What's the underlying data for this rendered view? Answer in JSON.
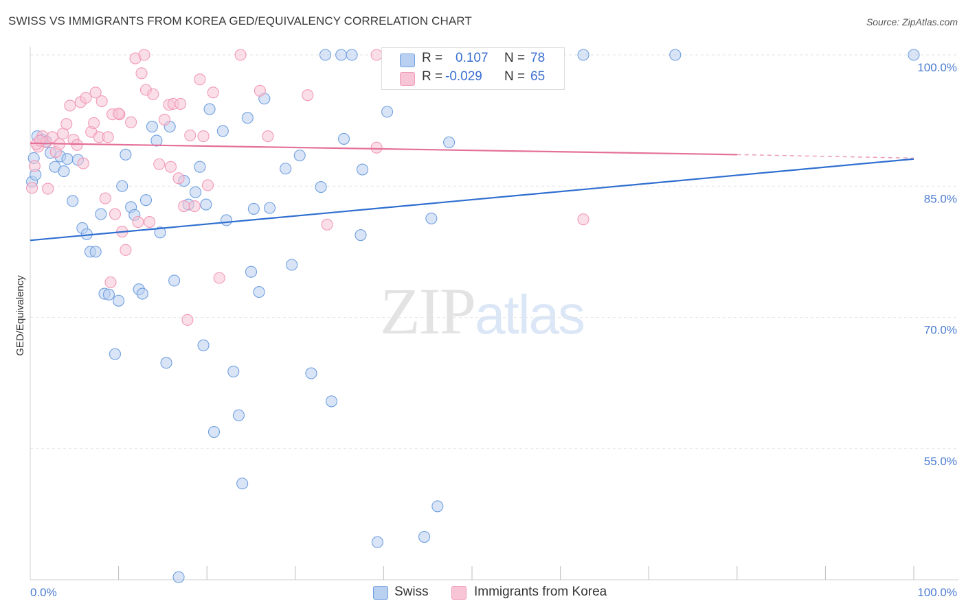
{
  "title": "SWISS VS IMMIGRANTS FROM KOREA GED/EQUIVALENCY CORRELATION CHART",
  "source": "Source: ZipAtlas.com",
  "watermark": {
    "zip": "ZIP",
    "atlas": "atlas"
  },
  "legend": {
    "rows": [
      {
        "r_label": "R =",
        "r_value": "0.107",
        "n_label": "N =",
        "n_value": "78"
      },
      {
        "r_label": "R =",
        "r_value": "-0.029",
        "n_label": "N =",
        "n_value": "65"
      }
    ]
  },
  "bottom_legend": [
    "Swiss",
    "Immigrants from Korea"
  ],
  "chart_data": {
    "type": "scatter",
    "ylabel": "GED/Equivalency",
    "xlim": [
      0,
      100
    ],
    "ylim": [
      40,
      100
    ],
    "y_ticks": [
      {
        "value": 100,
        "label": "100.0%"
      },
      {
        "value": 85,
        "label": "85.0%"
      },
      {
        "value": 70,
        "label": "70.0%"
      },
      {
        "value": 55,
        "label": "55.0%"
      }
    ],
    "x_tick_labels": {
      "left": "0.0%",
      "right": "100.0%"
    },
    "grid": true,
    "series": [
      {
        "name": "Swiss",
        "color": "#6f9fe0",
        "fill": "#b9d0f1",
        "trend": {
          "x": [
            0,
            100
          ],
          "y": [
            78.8,
            88.1
          ],
          "color": "#2f6fd0"
        },
        "points": [
          [
            0.8,
            90.7
          ],
          [
            1.4,
            90.3
          ],
          [
            1.8,
            90.1
          ],
          [
            2.3,
            88.8
          ],
          [
            2.8,
            87.2
          ],
          [
            3.4,
            88.4
          ],
          [
            3.8,
            86.7
          ],
          [
            4.2,
            88.1
          ],
          [
            4.8,
            83.3
          ],
          [
            5.4,
            88.0
          ],
          [
            5.9,
            80.2
          ],
          [
            6.4,
            79.5
          ],
          [
            6.8,
            77.5
          ],
          [
            7.4,
            77.5
          ],
          [
            8.0,
            81.8
          ],
          [
            8.4,
            72.7
          ],
          [
            8.9,
            72.6
          ],
          [
            9.6,
            65.8
          ],
          [
            10.0,
            71.9
          ],
          [
            10.4,
            85.0
          ],
          [
            10.8,
            88.6
          ],
          [
            11.4,
            82.6
          ],
          [
            11.8,
            81.7
          ],
          [
            12.3,
            73.2
          ],
          [
            12.7,
            72.7
          ],
          [
            13.1,
            83.4
          ],
          [
            13.8,
            91.8
          ],
          [
            14.3,
            90.2
          ],
          [
            14.7,
            79.7
          ],
          [
            15.4,
            64.8
          ],
          [
            15.8,
            91.8
          ],
          [
            16.3,
            74.2
          ],
          [
            16.8,
            40.3
          ],
          [
            17.4,
            85.6
          ],
          [
            17.9,
            82.9
          ],
          [
            18.7,
            84.3
          ],
          [
            19.2,
            87.2
          ],
          [
            19.6,
            66.8
          ],
          [
            19.9,
            82.9
          ],
          [
            20.3,
            93.8
          ],
          [
            20.8,
            56.9
          ],
          [
            21.8,
            91.3
          ],
          [
            22.2,
            81.1
          ],
          [
            23.0,
            63.8
          ],
          [
            23.6,
            58.8
          ],
          [
            24.0,
            51.0
          ],
          [
            24.6,
            92.8
          ],
          [
            25.0,
            75.2
          ],
          [
            25.3,
            82.4
          ],
          [
            25.9,
            72.9
          ],
          [
            26.5,
            95.0
          ],
          [
            27.1,
            82.5
          ],
          [
            28.9,
            87.0
          ],
          [
            29.6,
            76.0
          ],
          [
            30.5,
            88.5
          ],
          [
            31.8,
            63.6
          ],
          [
            32.9,
            84.9
          ],
          [
            33.4,
            100.0
          ],
          [
            34.1,
            60.4
          ],
          [
            35.2,
            100.0
          ],
          [
            35.5,
            90.4
          ],
          [
            36.4,
            100.0
          ],
          [
            37.4,
            79.4
          ],
          [
            37.6,
            86.9
          ],
          [
            39.3,
            44.3
          ],
          [
            40.4,
            93.5
          ],
          [
            44.6,
            44.9
          ],
          [
            45.1,
            100.0
          ],
          [
            45.4,
            81.3
          ],
          [
            46.1,
            48.4
          ],
          [
            47.4,
            90.0
          ],
          [
            56.2,
            100.0
          ],
          [
            62.6,
            100.0
          ],
          [
            73.0,
            100.0
          ],
          [
            100.0,
            100.0
          ],
          [
            0.2,
            85.5
          ],
          [
            0.4,
            88.2
          ],
          [
            0.6,
            86.3
          ]
        ]
      },
      {
        "name": "Immigrants from Korea",
        "color": "#f199b7",
        "fill": "#f8c5d6",
        "trend": {
          "x": [
            0,
            80
          ],
          "y": [
            89.9,
            88.6
          ],
          "color": "#e4709a"
        },
        "trend_dashed": {
          "x": [
            80,
            100
          ],
          "y": [
            88.6,
            88.2
          ]
        },
        "points": [
          [
            0.2,
            84.8
          ],
          [
            0.5,
            87.3
          ],
          [
            0.9,
            89.5
          ],
          [
            1.4,
            90.7
          ],
          [
            1.8,
            90.0
          ],
          [
            2.0,
            84.7
          ],
          [
            2.5,
            90.6
          ],
          [
            2.9,
            88.9
          ],
          [
            3.3,
            89.8
          ],
          [
            3.7,
            91.0
          ],
          [
            4.1,
            92.1
          ],
          [
            4.5,
            94.2
          ],
          [
            4.9,
            90.3
          ],
          [
            5.3,
            89.7
          ],
          [
            5.7,
            94.6
          ],
          [
            6.0,
            87.6
          ],
          [
            6.3,
            95.1
          ],
          [
            6.9,
            91.2
          ],
          [
            7.2,
            92.2
          ],
          [
            7.4,
            95.7
          ],
          [
            7.8,
            90.6
          ],
          [
            8.1,
            94.7
          ],
          [
            8.5,
            83.6
          ],
          [
            8.8,
            90.6
          ],
          [
            9.1,
            74.0
          ],
          [
            9.6,
            81.8
          ],
          [
            10.1,
            93.2
          ],
          [
            10.4,
            79.8
          ],
          [
            10.8,
            77.7
          ],
          [
            11.4,
            92.3
          ],
          [
            11.9,
            99.6
          ],
          [
            12.2,
            80.9
          ],
          [
            12.6,
            97.9
          ],
          [
            13.1,
            96.0
          ],
          [
            13.5,
            80.9
          ],
          [
            13.9,
            95.5
          ],
          [
            14.6,
            87.5
          ],
          [
            15.2,
            92.6
          ],
          [
            15.7,
            94.3
          ],
          [
            16.2,
            94.4
          ],
          [
            16.8,
            85.9
          ],
          [
            17.4,
            82.7
          ],
          [
            18.1,
            90.8
          ],
          [
            18.6,
            82.7
          ],
          [
            19.2,
            97.2
          ],
          [
            19.6,
            90.7
          ],
          [
            20.1,
            85.1
          ],
          [
            20.7,
            95.7
          ],
          [
            21.4,
            74.5
          ],
          [
            23.8,
            100.0
          ],
          [
            26.0,
            95.9
          ],
          [
            26.9,
            90.7
          ],
          [
            31.4,
            95.4
          ],
          [
            33.6,
            80.6
          ],
          [
            39.2,
            89.4
          ],
          [
            39.2,
            100.0
          ],
          [
            62.6,
            81.2
          ],
          [
            0.7,
            89.8
          ],
          [
            1.1,
            90.2
          ],
          [
            15.9,
            87.2
          ],
          [
            12.9,
            100.0
          ],
          [
            17.0,
            94.4
          ],
          [
            9.3,
            93.2
          ],
          [
            10.0,
            93.3
          ],
          [
            17.8,
            69.7
          ]
        ]
      }
    ]
  }
}
